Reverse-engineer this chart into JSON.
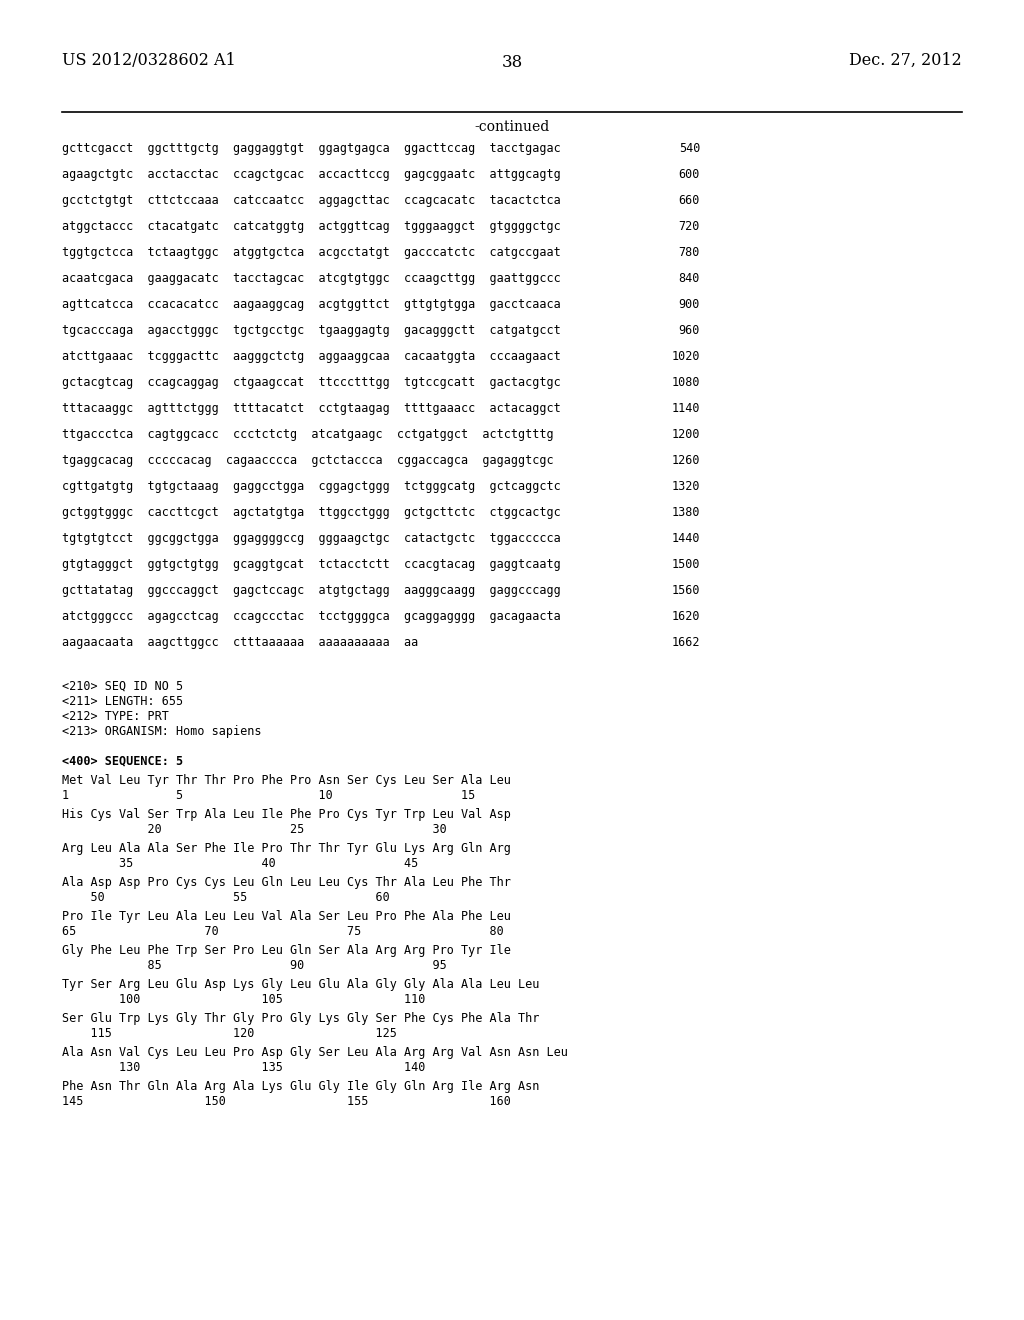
{
  "header_left": "US 2012/0328602 A1",
  "header_right": "Dec. 27, 2012",
  "page_number": "38",
  "continued_label": "-continued",
  "background_color": "#ffffff",
  "text_color": "#000000",
  "sequence_lines": [
    {
      "seq": "gcttcgacct  ggctttgctg  gaggaggtgt  ggagtgagca  ggacttccag  tacctgagac",
      "num": "540"
    },
    {
      "seq": "agaagctgtc  acctacctac  ccagctgcac  accacttccg  gagcggaatc  attggcagtg",
      "num": "600"
    },
    {
      "seq": "gcctctgtgt  cttctccaaa  catccaatcc  aggagcttac  ccagcacatc  tacactctca",
      "num": "660"
    },
    {
      "seq": "atggctaccc  ctacatgatc  catcatggtg  actggttcag  tgggaaggct  gtggggctgc",
      "num": "720"
    },
    {
      "seq": "tggtgctcca  tctaagtggc  atggtgctca  acgcctatgt  gacccatctc  catgccgaat",
      "num": "780"
    },
    {
      "seq": "acaatcgaca  gaaggacatc  tacctagcac  atcgtgtggc  ccaagcttgg  gaattggccc",
      "num": "840"
    },
    {
      "seq": "agttcatcca  ccacacatcc  aagaaggcag  acgtggttct  gttgtgtgga  gacctcaaca",
      "num": "900"
    },
    {
      "seq": "tgcacccaga  agacctgggc  tgctgcctgc  tgaaggagtg  gacagggctt  catgatgcct",
      "num": "960"
    },
    {
      "seq": "atcttgaaac  tcgggacttc  aagggctctg  aggaaggcaa  cacaatggta  cccaagaact",
      "num": "1020"
    },
    {
      "seq": "gctacgtcag  ccagcaggag  ctgaagccat  ttccctttgg  tgtccgcatt  gactacgtgc",
      "num": "1080"
    },
    {
      "seq": "tttacaaggc  agtttctggg  ttttacatct  cctgtaagag  ttttgaaacc  actacaggct",
      "num": "1140"
    },
    {
      "seq": "ttgaccctca  cagtggcacc  ccctctctg  atcatgaagc  cctgatggct  actctgtttg",
      "num": "1200"
    },
    {
      "seq": "tgaggcacag  cccccacag  cagaacccca  gctctaccca  cggaccagca  gagaggtcgc",
      "num": "1260"
    },
    {
      "seq": "cgttgatgtg  tgtgctaaag  gaggcctgga  cggagctggg  tctgggcatg  gctcaggctc",
      "num": "1320"
    },
    {
      "seq": "gctggtgggc  caccttcgct  agctatgtga  ttggcctggg  gctgcttctc  ctggcactgc",
      "num": "1380"
    },
    {
      "seq": "tgtgtgtcct  ggcggctgga  ggaggggccg  gggaagctgc  catactgctc  tggaccccca",
      "num": "1440"
    },
    {
      "seq": "gtgtagggct  ggtgctgtgg  gcaggtgcat  tctacctctt  ccacgtacag  gaggtcaatg",
      "num": "1500"
    },
    {
      "seq": "gcttatatag  ggcccaggct  gagctccagc  atgtgctagg  aagggcaagg  gaggcccagg",
      "num": "1560"
    },
    {
      "seq": "atctgggccc  agagcctcag  ccagccctac  tcctggggca  gcaggagggg  gacagaacta",
      "num": "1620"
    },
    {
      "seq": "aagaacaata  aagcttggcc  ctttaaaaaa  aaaaaaaaaa  aa",
      "num": "1662"
    }
  ],
  "metadata_lines": [
    "<210> SEQ ID NO 5",
    "<211> LENGTH: 655",
    "<212> TYPE: PRT",
    "<213> ORGANISM: Homo sapiens"
  ],
  "sequence_label": "<400> SEQUENCE: 5",
  "protein_lines": [
    {
      "residues": "Met Val Leu Tyr Thr Thr Pro Phe Pro Asn Ser Cys Leu Ser Ala Leu",
      "numbers": "1               5                   10                  15"
    },
    {
      "residues": "His Cys Val Ser Trp Ala Leu Ile Phe Pro Cys Tyr Trp Leu Val Asp",
      "numbers": "            20                  25                  30"
    },
    {
      "residues": "Arg Leu Ala Ala Ser Phe Ile Pro Thr Thr Tyr Glu Lys Arg Gln Arg",
      "numbers": "        35                  40                  45"
    },
    {
      "residues": "Ala Asp Asp Pro Cys Cys Leu Gln Leu Leu Cys Thr Ala Leu Phe Thr",
      "numbers": "    50                  55                  60"
    },
    {
      "residues": "Pro Ile Tyr Leu Ala Leu Leu Val Ala Ser Leu Pro Phe Ala Phe Leu",
      "numbers": "65                  70                  75                  80"
    },
    {
      "residues": "Gly Phe Leu Phe Trp Ser Pro Leu Gln Ser Ala Arg Arg Pro Tyr Ile",
      "numbers": "            85                  90                  95"
    },
    {
      "residues": "Tyr Ser Arg Leu Glu Asp Lys Gly Leu Glu Ala Gly Gly Ala Ala Leu Leu",
      "numbers": "        100                 105                 110"
    },
    {
      "residues": "Ser Glu Trp Lys Gly Thr Gly Pro Gly Lys Gly Ser Phe Cys Phe Ala Thr",
      "numbers": "    115                 120                 125"
    },
    {
      "residues": "Ala Asn Val Cys Leu Leu Pro Asp Gly Ser Leu Ala Arg Arg Val Asn Asn Leu",
      "numbers": "        130                 135                 140"
    },
    {
      "residues": "Phe Asn Thr Gln Ala Arg Ala Lys Glu Gly Ile Gly Gln Arg Ile Arg Asn",
      "numbers": "145                 150                 155                 160"
    }
  ]
}
